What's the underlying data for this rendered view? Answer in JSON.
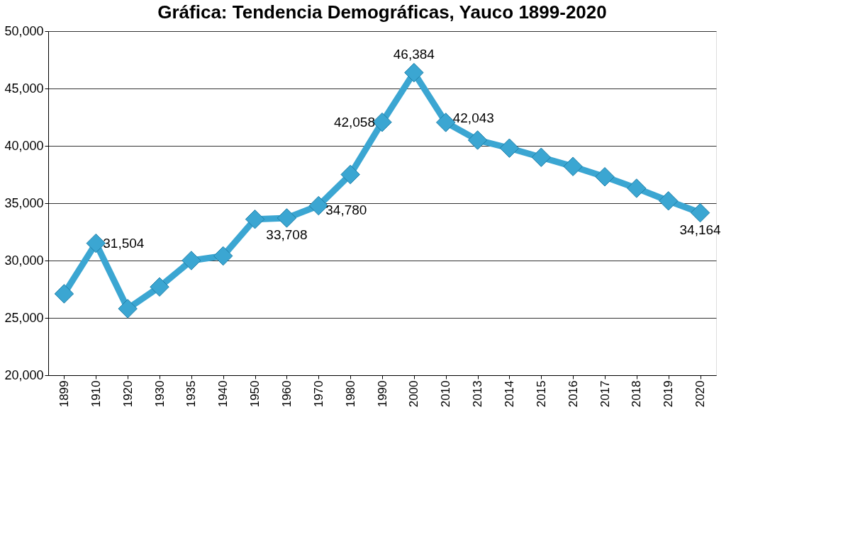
{
  "chart_data": {
    "type": "line",
    "title": "Gráfica: Tendencia Demográficas, Yauco 1899-2020",
    "categories": [
      "1899",
      "1910",
      "1920",
      "1930",
      "1935",
      "1940",
      "1950",
      "1960",
      "1970",
      "1980",
      "1990",
      "2000",
      "2010",
      "2013",
      "2014",
      "2015",
      "2016",
      "2017",
      "2018",
      "2019",
      "2020"
    ],
    "series": [
      {
        "color": "#3ba6d2",
        "values": [
          27100,
          31504,
          25800,
          27700,
          30000,
          30400,
          33600,
          33708,
          34780,
          37500,
          42058,
          46384,
          42043,
          40500,
          39800,
          39000,
          38200,
          37300,
          36300,
          35200,
          34164
        ],
        "value_labels": [
          null,
          "31,504",
          null,
          null,
          null,
          null,
          null,
          "33,708",
          "34,780",
          null,
          "42,058",
          "46,384",
          "42,043",
          null,
          null,
          null,
          null,
          null,
          null,
          null,
          "34,164"
        ]
      }
    ],
    "ylim": [
      20000,
      50000
    ],
    "yticks": [
      {
        "value": 20000,
        "label": "20,000"
      },
      {
        "value": 25000,
        "label": "25,000"
      },
      {
        "value": 30000,
        "label": "30,000"
      },
      {
        "value": 35000,
        "label": "35,000"
      },
      {
        "value": 40000,
        "label": "40,000"
      },
      {
        "value": 45000,
        "label": "45,000"
      },
      {
        "value": 50000,
        "label": "50,000"
      }
    ],
    "grid": "y",
    "marker": "diamond",
    "line_style": "solid"
  }
}
